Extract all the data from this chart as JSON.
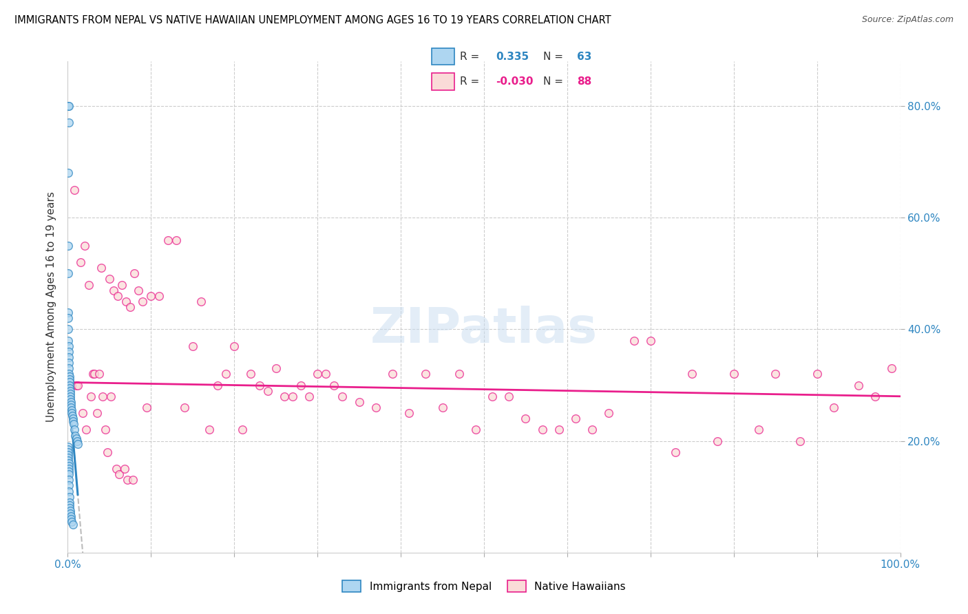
{
  "title": "IMMIGRANTS FROM NEPAL VS NATIVE HAWAIIAN UNEMPLOYMENT AMONG AGES 16 TO 19 YEARS CORRELATION CHART",
  "source": "Source: ZipAtlas.com",
  "ylabel": "Unemployment Among Ages 16 to 19 years",
  "r_nepal": 0.335,
  "n_nepal": 63,
  "r_hawaiian": -0.03,
  "n_hawaiian": 88,
  "nepal_fill_color": "#AED6F1",
  "nepal_edge_color": "#2E86C1",
  "hawaiian_fill_color": "#FADBD8",
  "hawaiian_edge_color": "#E91E8C",
  "nepal_trend_color": "#2E86C1",
  "hawaiian_trend_color": "#E91E8C",
  "dashed_line_color": "#AAAAAA",
  "watermark": "ZIPatlas",
  "nepal_x": [
    0.05,
    0.12,
    0.12,
    0.05,
    0.08,
    0.08,
    0.05,
    0.05,
    0.08,
    0.08,
    0.1,
    0.1,
    0.12,
    0.12,
    0.15,
    0.15,
    0.18,
    0.2,
    0.2,
    0.22,
    0.25,
    0.28,
    0.3,
    0.3,
    0.32,
    0.35,
    0.4,
    0.42,
    0.45,
    0.5,
    0.55,
    0.6,
    0.65,
    0.7,
    0.8,
    0.9,
    1.0,
    1.1,
    1.2,
    0.05,
    0.05,
    0.06,
    0.07,
    0.08,
    0.08,
    0.09,
    0.1,
    0.1,
    0.1,
    0.12,
    0.12,
    0.15,
    0.15,
    0.18,
    0.2,
    0.22,
    0.25,
    0.28,
    0.3,
    0.35,
    0.4,
    0.5,
    0.6
  ],
  "nepal_y": [
    80.0,
    80.0,
    77.0,
    68.0,
    55.0,
    50.0,
    43.0,
    42.0,
    40.0,
    38.0,
    37.0,
    36.0,
    35.0,
    34.0,
    33.0,
    32.0,
    31.5,
    31.0,
    30.5,
    30.0,
    29.5,
    29.0,
    28.5,
    28.0,
    27.5,
    27.0,
    26.5,
    26.0,
    25.5,
    25.0,
    24.5,
    24.0,
    23.5,
    23.0,
    22.0,
    21.0,
    20.5,
    20.0,
    19.5,
    19.0,
    18.5,
    18.0,
    17.5,
    17.0,
    16.5,
    16.0,
    15.5,
    15.0,
    14.5,
    14.0,
    13.0,
    12.0,
    11.0,
    10.0,
    9.0,
    8.5,
    8.0,
    7.5,
    7.0,
    6.5,
    6.0,
    5.5,
    5.0
  ],
  "hawaiian_x": [
    1.0,
    1.5,
    2.0,
    2.5,
    3.0,
    3.5,
    4.0,
    4.5,
    5.0,
    5.5,
    6.0,
    6.5,
    7.0,
    7.5,
    8.0,
    8.5,
    9.0,
    9.5,
    10.0,
    11.0,
    12.0,
    13.0,
    14.0,
    15.0,
    16.0,
    17.0,
    18.0,
    19.0,
    20.0,
    21.0,
    22.0,
    23.0,
    24.0,
    25.0,
    26.0,
    27.0,
    28.0,
    29.0,
    30.0,
    31.0,
    32.0,
    33.0,
    35.0,
    37.0,
    39.0,
    41.0,
    43.0,
    45.0,
    47.0,
    49.0,
    51.0,
    53.0,
    55.0,
    57.0,
    59.0,
    61.0,
    63.0,
    65.0,
    68.0,
    70.0,
    73.0,
    75.0,
    78.0,
    80.0,
    83.0,
    85.0,
    88.0,
    90.0,
    92.0,
    95.0,
    97.0,
    99.0,
    0.5,
    0.8,
    1.2,
    1.8,
    2.2,
    2.8,
    3.2,
    3.8,
    4.2,
    4.8,
    5.2,
    5.8,
    6.2,
    6.8,
    7.2,
    7.8
  ],
  "hawaiian_y": [
    30.0,
    52.0,
    55.0,
    48.0,
    32.0,
    25.0,
    51.0,
    22.0,
    49.0,
    47.0,
    46.0,
    48.0,
    45.0,
    44.0,
    50.0,
    47.0,
    45.0,
    26.0,
    46.0,
    46.0,
    56.0,
    56.0,
    26.0,
    37.0,
    45.0,
    22.0,
    30.0,
    32.0,
    37.0,
    22.0,
    32.0,
    30.0,
    29.0,
    33.0,
    28.0,
    28.0,
    30.0,
    28.0,
    32.0,
    32.0,
    30.0,
    28.0,
    27.0,
    26.0,
    32.0,
    25.0,
    32.0,
    26.0,
    32.0,
    22.0,
    28.0,
    28.0,
    24.0,
    22.0,
    22.0,
    24.0,
    22.0,
    25.0,
    38.0,
    38.0,
    18.0,
    32.0,
    20.0,
    32.0,
    22.0,
    32.0,
    20.0,
    32.0,
    26.0,
    30.0,
    28.0,
    33.0,
    30.0,
    65.0,
    30.0,
    25.0,
    22.0,
    28.0,
    32.0,
    32.0,
    28.0,
    18.0,
    28.0,
    15.0,
    14.0,
    15.0,
    13.0,
    13.0
  ],
  "ylim": [
    0,
    88
  ],
  "xlim": [
    0,
    100
  ],
  "ytick_values": [
    20,
    40,
    60,
    80
  ],
  "ytick_labels_right": [
    "20.0%",
    "40.0%",
    "60.0%",
    "80.0%"
  ],
  "xtick_values": [
    0,
    10,
    20,
    30,
    40,
    50,
    60,
    70,
    80,
    90,
    100
  ],
  "background_color": "#ffffff"
}
